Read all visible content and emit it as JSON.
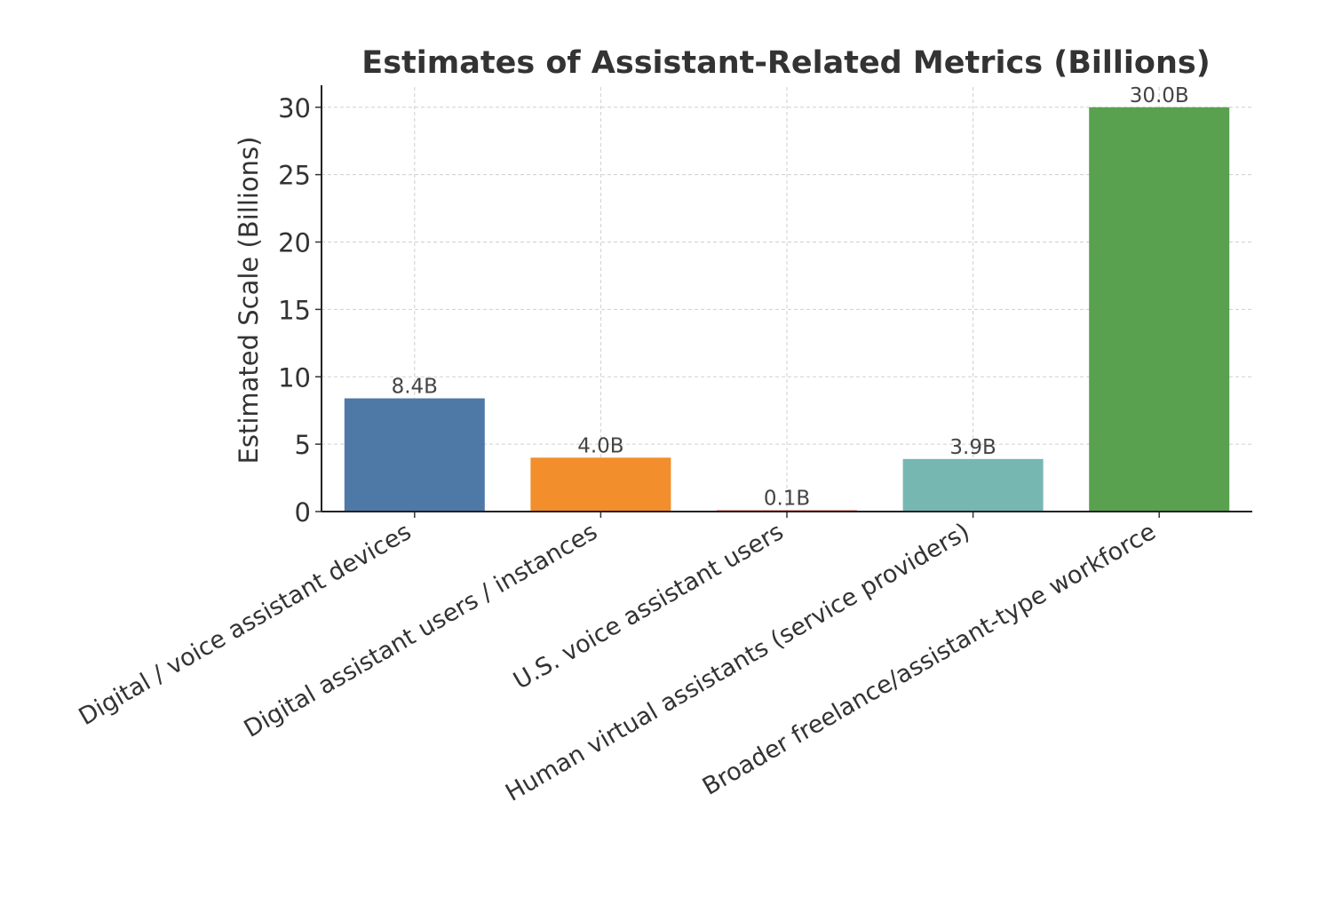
{
  "chart_data": {
    "type": "bar",
    "title": "Estimates of Assistant-Related Metrics (Billions)",
    "xlabel": "",
    "ylabel": "Estimated Scale (Billions)",
    "ylim": [
      0,
      31.5
    ],
    "yticks": [
      0,
      5,
      10,
      15,
      20,
      25,
      30
    ],
    "grid": true,
    "categories": [
      "Digital / voice assistant devices",
      "Digital assistant users / instances",
      "U.S. voice assistant users",
      "Human virtual assistants (service providers)",
      "Broader freelance/assistant-type workforce"
    ],
    "values": [
      8.4,
      4.0,
      0.1,
      3.9,
      30.0
    ],
    "value_labels": [
      "8.4B",
      "4.0B",
      "0.1B",
      "3.9B",
      "30.0B"
    ],
    "colors": [
      "#4e79a7",
      "#f28e2b",
      "#e15759",
      "#76b7b2",
      "#59a14f"
    ]
  }
}
